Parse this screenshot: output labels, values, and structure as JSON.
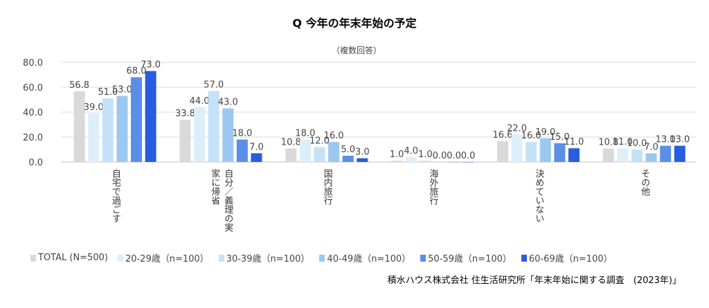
{
  "chart_data": {
    "type": "bar",
    "title": "Q  今年の年末年始の予定",
    "note": "（複数回答）",
    "categories": [
      "自宅で過ごす",
      "自分／義理の実家に帰省",
      "国内旅行",
      "海外旅行",
      "決めていない",
      "その他"
    ],
    "series": [
      {
        "name": "TOTAL (N=500)",
        "color": "#d9d9d9",
        "values": [
          56.8,
          33.8,
          10.8,
          1.0,
          16.6,
          10.8
        ]
      },
      {
        "name": "20-29歳（n=100）",
        "color": "#ddeefb",
        "values": [
          39.0,
          44.0,
          18.0,
          4.0,
          22.0,
          11.0
        ]
      },
      {
        "name": "30-39歳（n=100）",
        "color": "#c4e2f7",
        "values": [
          51.0,
          57.0,
          12.0,
          1.0,
          16.0,
          10.0
        ]
      },
      {
        "name": "40-49歳（n=100）",
        "color": "#9cc8f0",
        "values": [
          53.0,
          43.0,
          16.0,
          0.0,
          19.0,
          7.0
        ]
      },
      {
        "name": "50-59歳（n=100）",
        "color": "#5b8ee8",
        "values": [
          68.0,
          18.0,
          5.0,
          0.0,
          15.0,
          13.0
        ]
      },
      {
        "name": "60-69歳（n=100）",
        "color": "#2a5ce0",
        "values": [
          73.0,
          7.0,
          3.0,
          0.0,
          11.0,
          13.0
        ]
      }
    ],
    "yticks": [
      "0.0",
      "20.0",
      "40.0",
      "60.0",
      "80.0"
    ],
    "ylim": [
      0,
      80
    ],
    "grid": true,
    "legend": "bottom"
  },
  "source": "積水ハウス株式会社 住生活研究所「年末年始に関する調査　(2023年)」"
}
